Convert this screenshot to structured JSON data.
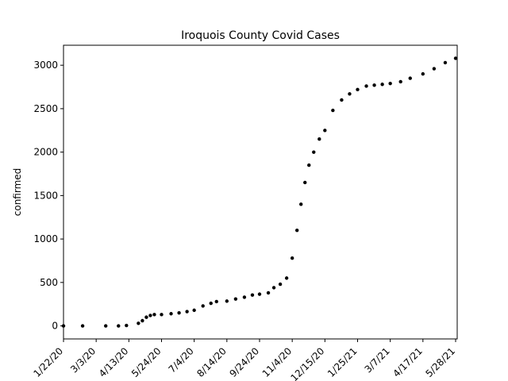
{
  "chart_data": {
    "type": "scatter",
    "title": "Iroquois County Covid Cases",
    "xlabel": "",
    "ylabel": "confirmed",
    "x_tick_labels": [
      "1/22/20",
      "3/3/20",
      "4/13/20",
      "5/24/20",
      "7/4/20",
      "8/14/20",
      "9/24/20",
      "11/4/20",
      "12/15/20",
      "1/25/21",
      "3/7/21",
      "4/17/21",
      "5/28/21"
    ],
    "y_tick_labels": [
      "0",
      "500",
      "1000",
      "1500",
      "2000",
      "2500",
      "3000"
    ],
    "xlim": [
      "1/22/20",
      "5/28/21"
    ],
    "ylim": [
      -150,
      3230
    ],
    "grid": false,
    "marker_color": "#000000",
    "series": [
      {
        "x": [
          "1/22/20",
          "2/15/20",
          "3/15/20",
          "3/31/20",
          "4/10/20",
          "4/25/20",
          "4/30/20",
          "5/5/20",
          "5/10/20",
          "5/15/20",
          "5/24/20",
          "6/5/20",
          "6/15/20",
          "6/25/20",
          "7/4/20",
          "7/15/20",
          "7/25/20",
          "8/1/20",
          "8/14/20",
          "8/25/20",
          "9/5/20",
          "9/15/20",
          "9/24/20",
          "10/5/20",
          "10/12/20",
          "10/20/20",
          "10/28/20",
          "11/4/20",
          "11/10/20",
          "11/15/20",
          "11/20/20",
          "11/25/20",
          "12/1/20",
          "12/8/20",
          "12/15/20",
          "12/25/20",
          "1/5/21",
          "1/15/21",
          "1/25/21",
          "2/5/21",
          "2/15/21",
          "2/25/21",
          "3/7/21",
          "3/20/21",
          "4/1/21",
          "4/17/21",
          "5/1/21",
          "5/15/21",
          "5/28/21"
        ],
        "y": [
          0,
          0,
          0,
          0,
          5,
          30,
          60,
          100,
          120,
          130,
          130,
          140,
          150,
          165,
          180,
          230,
          260,
          280,
          285,
          310,
          330,
          355,
          365,
          380,
          440,
          480,
          550,
          780,
          1100,
          1400,
          1650,
          1850,
          2000,
          2150,
          2250,
          2480,
          2600,
          2670,
          2720,
          2760,
          2770,
          2780,
          2790,
          2810,
          2850,
          2900,
          2960,
          3030,
          3080
        ]
      }
    ]
  }
}
